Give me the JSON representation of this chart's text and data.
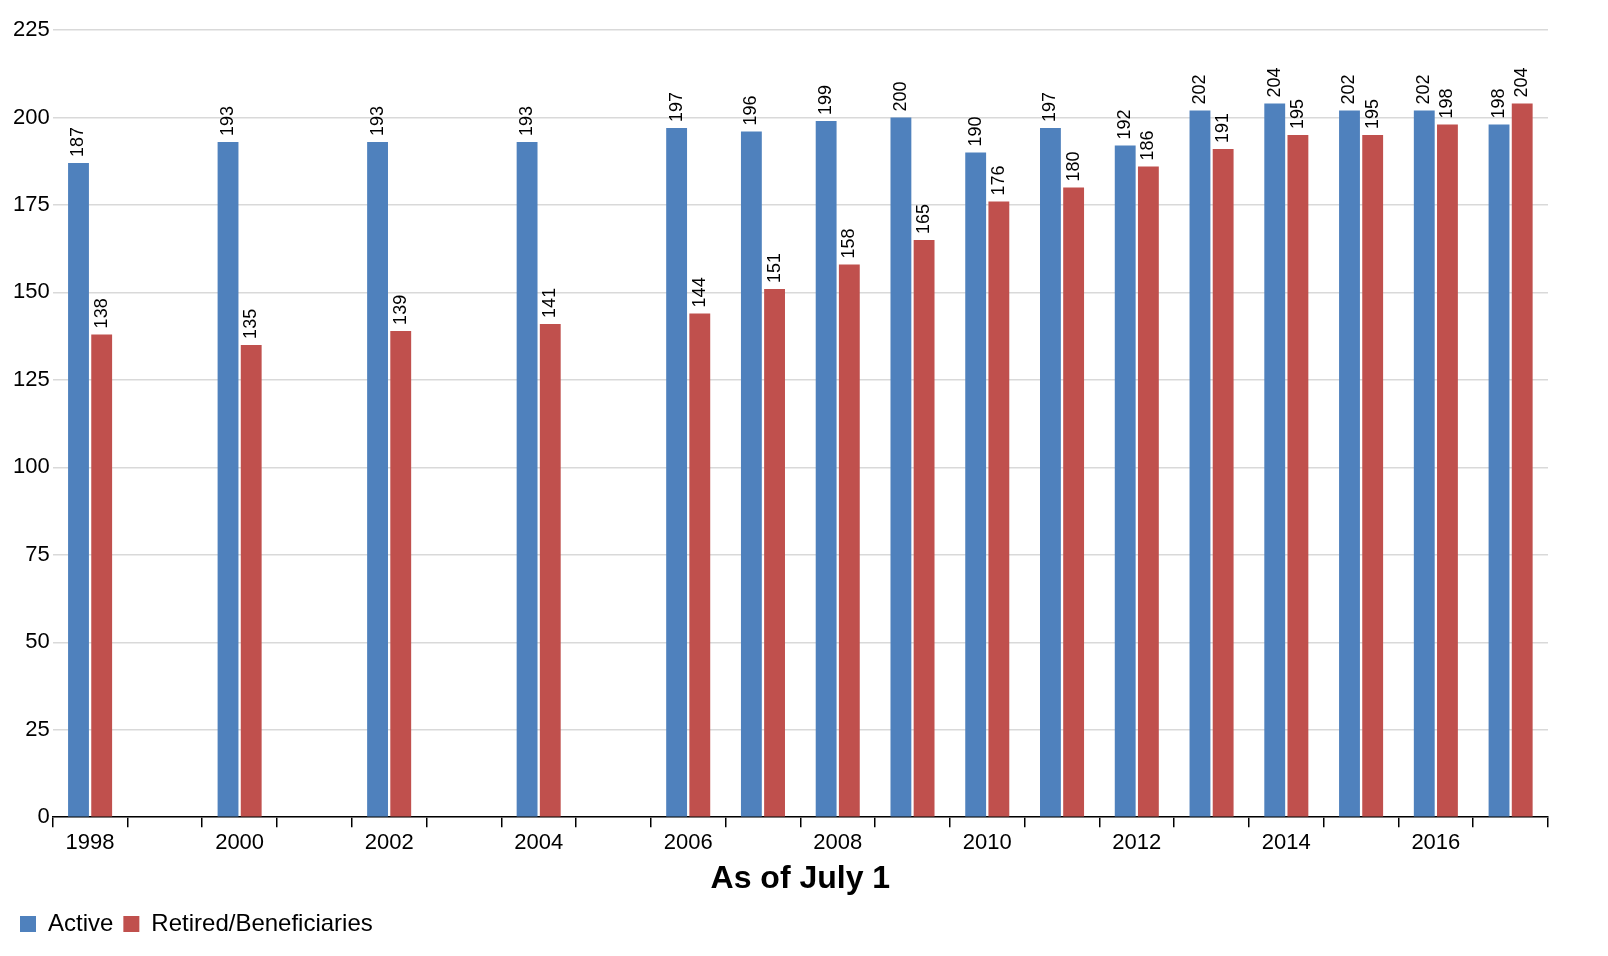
{
  "chart_data": {
    "type": "bar",
    "xlabel": "As of July 1",
    "categories": [
      "1998",
      null,
      "2000",
      null,
      "2002",
      null,
      "2004",
      null,
      "2006",
      null,
      "2008",
      null,
      "2010",
      null,
      "2012",
      null,
      "2014",
      null,
      "2016",
      null
    ],
    "series": [
      {
        "name": "Active",
        "color": "#4f81bd",
        "values": [
          187,
          null,
          193,
          null,
          193,
          null,
          193,
          null,
          197,
          196,
          199,
          200,
          190,
          197,
          192,
          202,
          204,
          202,
          202,
          198
        ]
      },
      {
        "name": "Retired/Beneficiaries",
        "color": "#c0504d",
        "values": [
          138,
          null,
          135,
          null,
          139,
          null,
          141,
          null,
          144,
          151,
          158,
          165,
          176,
          180,
          186,
          191,
          195,
          195,
          198,
          204
        ]
      }
    ],
    "ylim": [
      0,
      225
    ],
    "yticks": [
      0,
      25,
      50,
      75,
      100,
      125,
      150,
      175,
      200,
      225
    ],
    "grid": "y",
    "legend": "bottom left",
    "data_labels": true
  }
}
